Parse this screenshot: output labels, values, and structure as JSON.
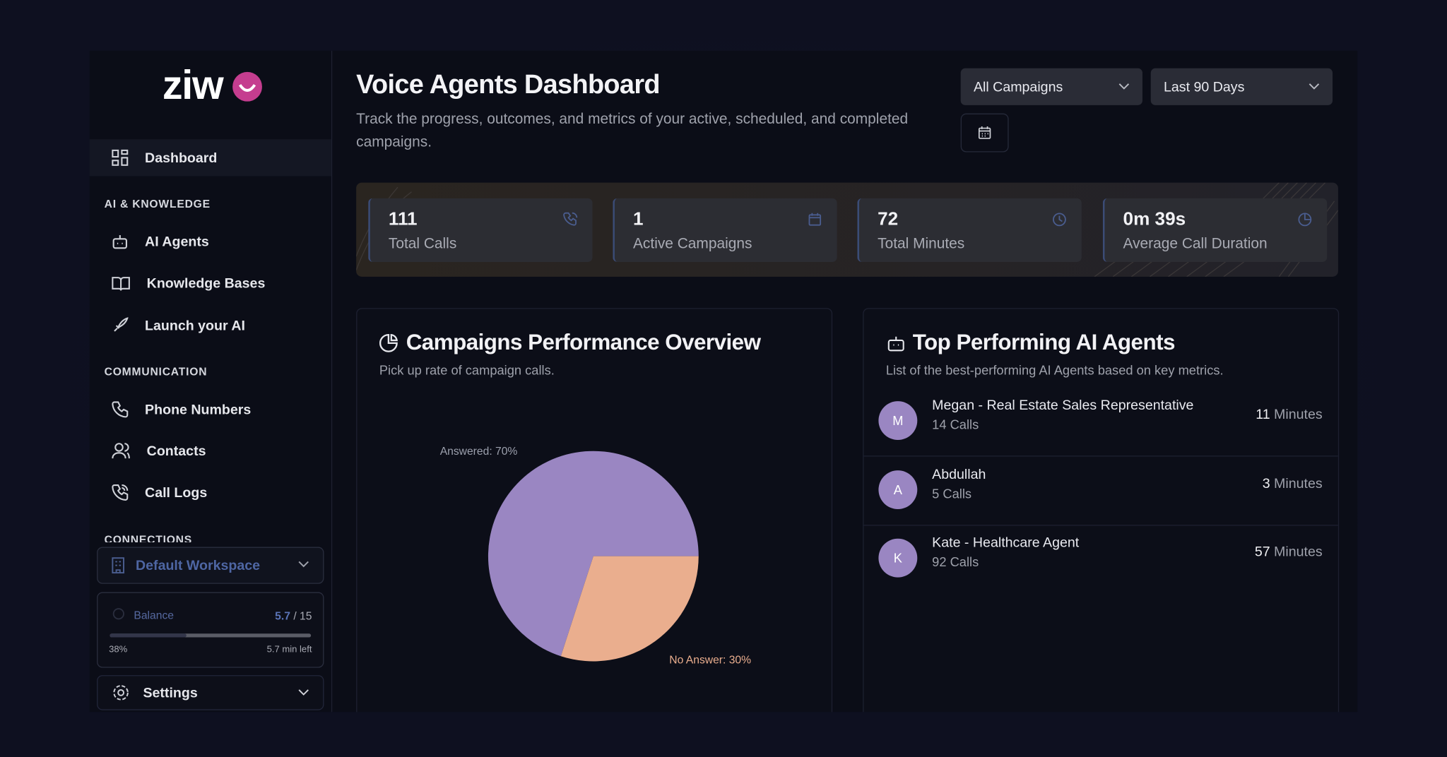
{
  "logo": "ziw",
  "sidebar": {
    "dashboard": "Dashboard",
    "sections": [
      {
        "title": "AI & KNOWLEDGE",
        "items": [
          "AI Agents",
          "Knowledge Bases",
          "Launch your AI"
        ]
      },
      {
        "title": "COMMUNICATION",
        "items": [
          "Phone Numbers",
          "Contacts",
          "Call Logs"
        ]
      },
      {
        "title": "CONNECTIONS"
      }
    ],
    "workspace": "Default Workspace",
    "balance": {
      "label": "Balance",
      "used": "5.7",
      "total": "/ 15",
      "progress": {
        "value": 38,
        "label": "38%"
      },
      "remaining": "5.7 min left"
    },
    "settings": "Settings"
  },
  "header": {
    "title": "Voice Agents Dashboard",
    "subtitle": "Track the progress, outcomes, and metrics of your active, scheduled, and completed campaigns.",
    "filters": [
      "All Campaigns",
      "Last 90 Days"
    ]
  },
  "stats": [
    {
      "value": "111",
      "label": "Total Calls"
    },
    {
      "value": "1",
      "label": "Active Campaigns"
    },
    {
      "value": "72",
      "label": "Total Minutes"
    },
    {
      "value": "0m 39s",
      "label": "Average Call Duration"
    }
  ],
  "campaigns": {
    "title": "Campaigns Performance Overview",
    "subtitle": "Pick up rate of campaign calls.",
    "slices": [
      {
        "label": "Answered: 70%",
        "value": 70,
        "color": "#9a86c2",
        "label_color": "#9ca0ad"
      },
      {
        "label": "No Answer: 30%",
        "value": 30,
        "color": "#eaae8e",
        "label_color": "#eaae8e"
      }
    ]
  },
  "agents": {
    "title": "Top Performing AI Agents",
    "subtitle": "List of the best-performing AI Agents based on key metrics.",
    "list": [
      {
        "initial": "M",
        "name": "Megan - Real Estate Sales Representative",
        "calls": "14 Calls",
        "minutes": "11",
        "unit": "Minutes"
      },
      {
        "initial": "A",
        "name": "Abdullah",
        "calls": "5 Calls",
        "minutes": "3",
        "unit": "Minutes"
      },
      {
        "initial": "K",
        "name": "Kate - Healthcare Agent",
        "calls": "92 Calls",
        "minutes": "57",
        "unit": "Minutes"
      }
    ]
  }
}
